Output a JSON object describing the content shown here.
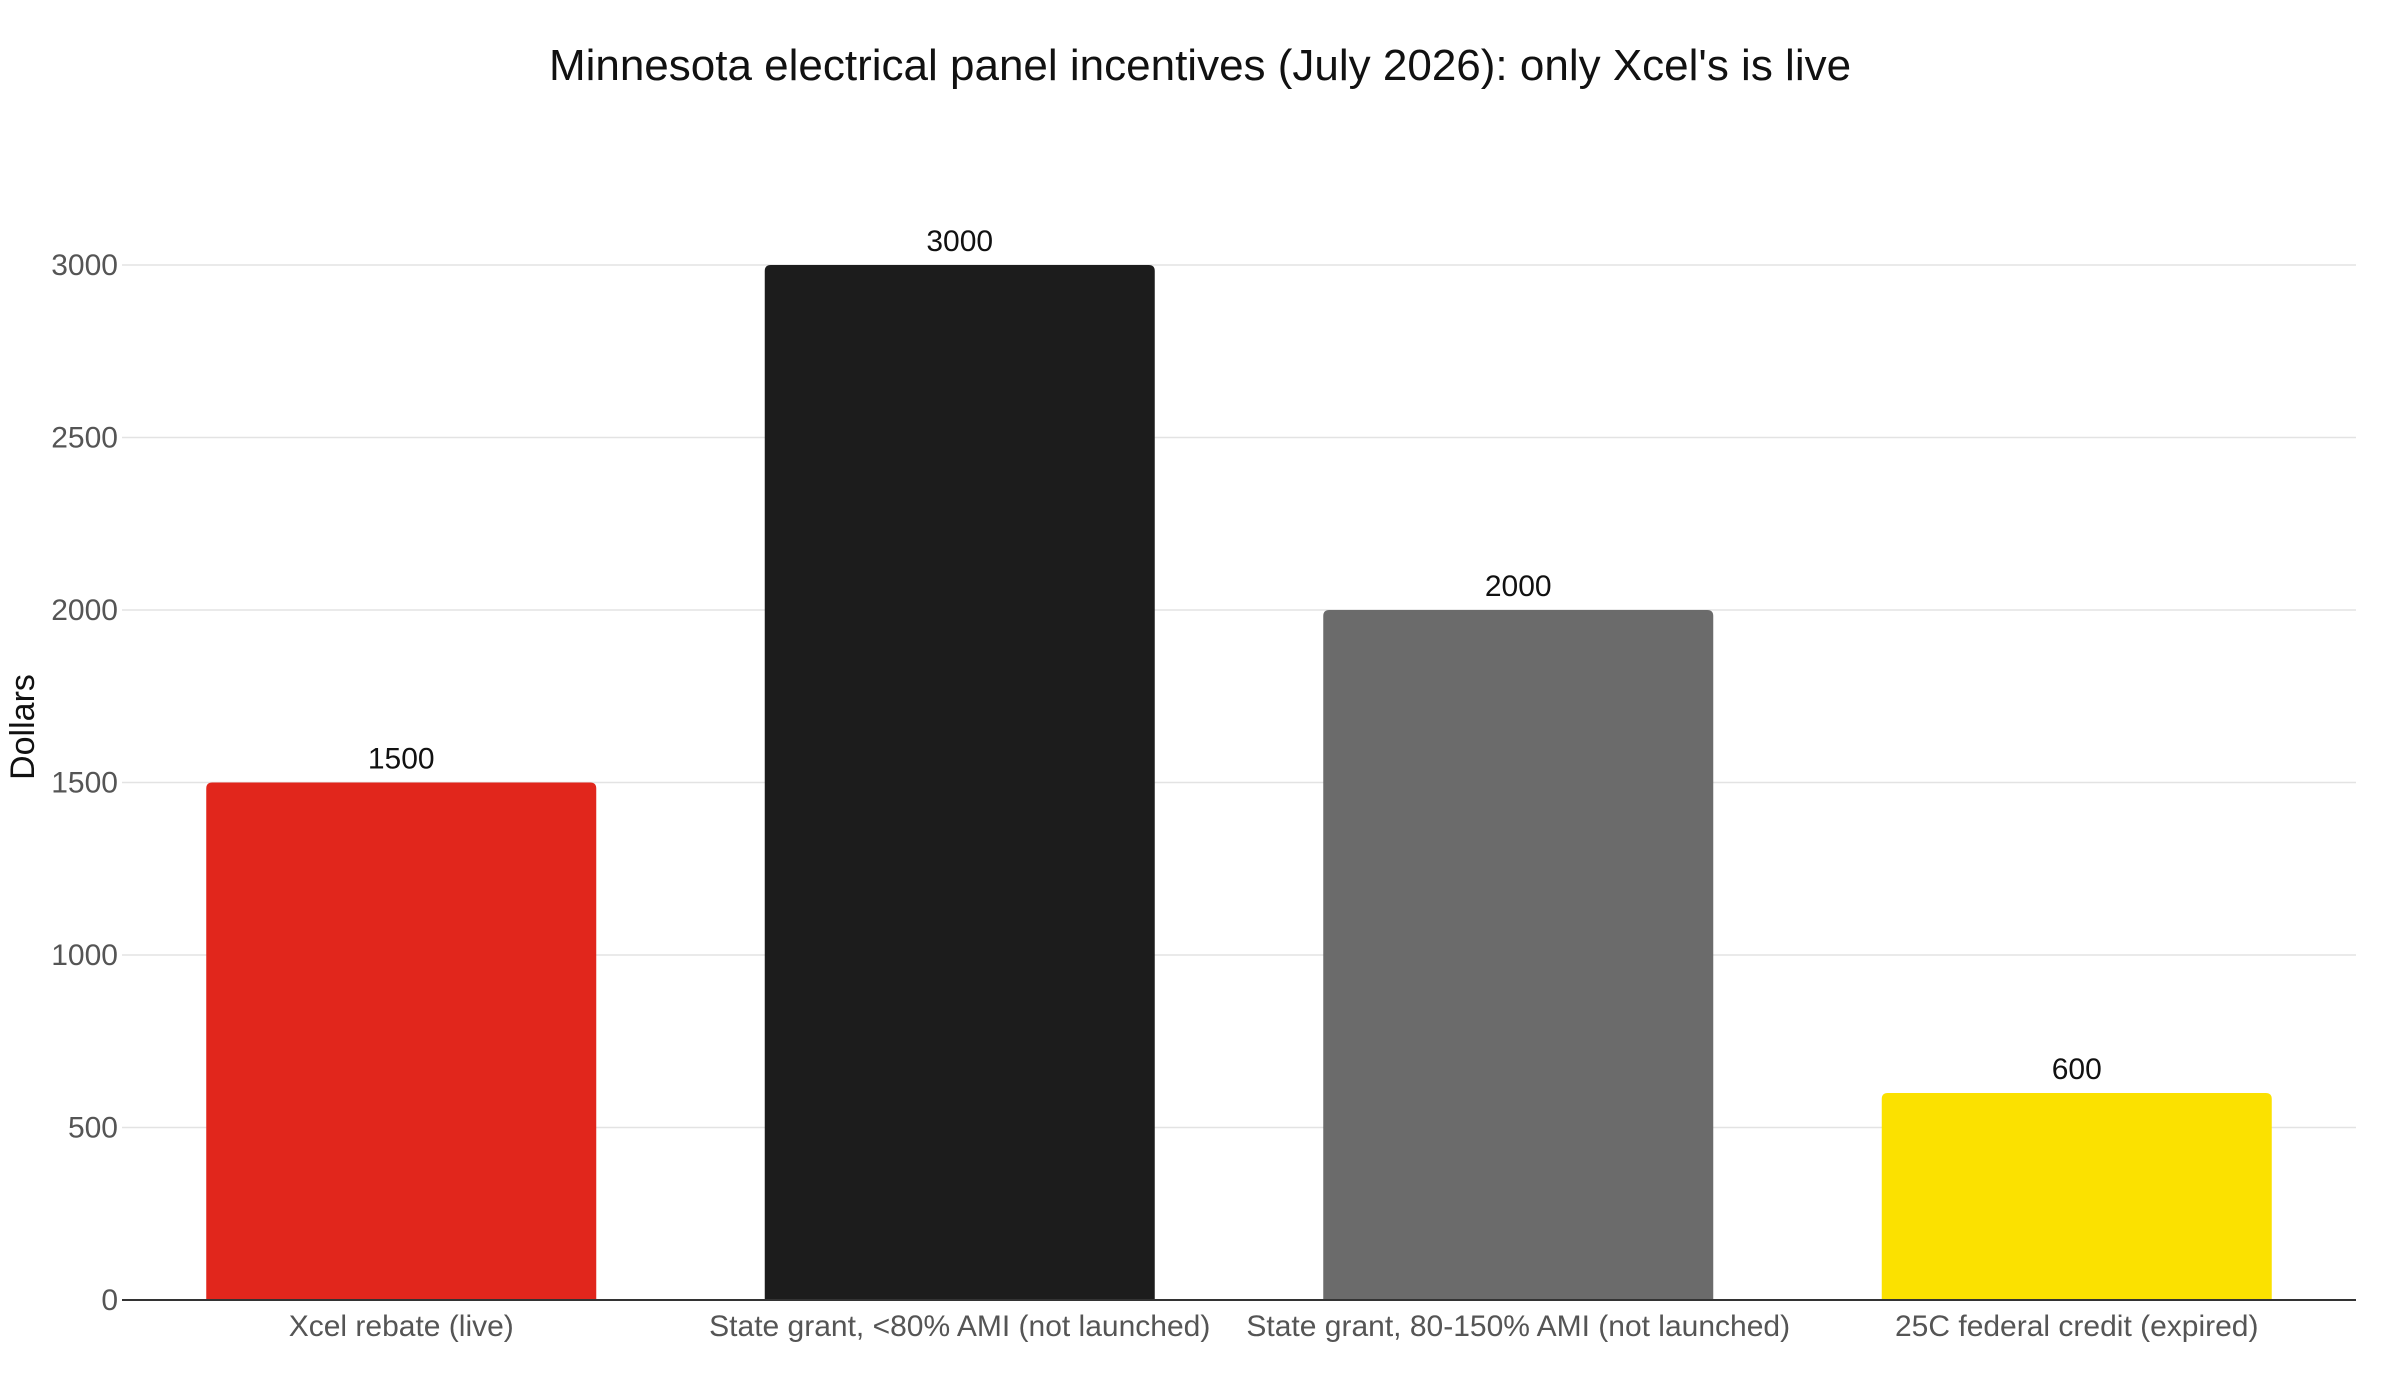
{
  "chart_data": {
    "type": "bar",
    "title": "Minnesota electrical panel incentives (July 2026): only Xcel's is live",
    "xlabel": "",
    "ylabel": "Dollars",
    "categories": [
      "Xcel rebate (live)",
      "State grant, <80% AMI (not launched)",
      "State grant, 80-150% AMI (not launched)",
      "25C federal credit (expired)"
    ],
    "values": [
      1500,
      3000,
      2000,
      600
    ],
    "colors": [
      "#e1261c",
      "#1c1c1c",
      "#6b6b6b",
      "#fbe100"
    ],
    "ylim": [
      0,
      3000
    ],
    "yticks": [
      0,
      500,
      1000,
      1500,
      2000,
      2500,
      3000
    ],
    "grid": true,
    "legend": "none"
  }
}
